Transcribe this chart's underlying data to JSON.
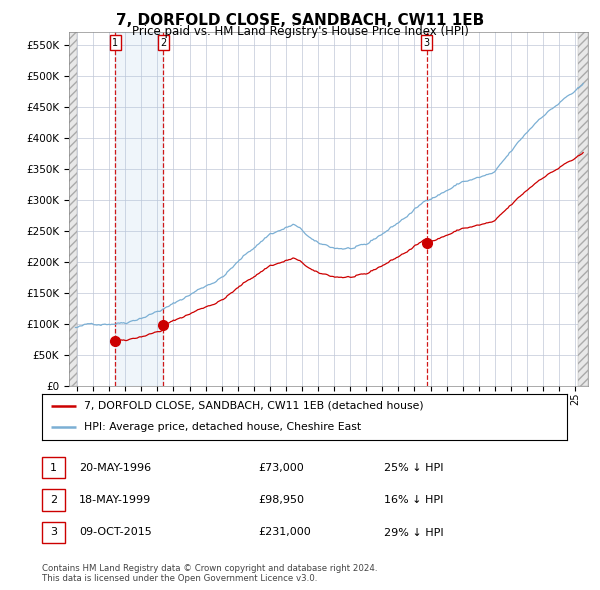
{
  "title": "7, DORFOLD CLOSE, SANDBACH, CW11 1EB",
  "subtitle": "Price paid vs. HM Land Registry's House Price Index (HPI)",
  "ylim": [
    0,
    570000
  ],
  "xlim": [
    1993.5,
    2025.8
  ],
  "yticks": [
    0,
    50000,
    100000,
    150000,
    200000,
    250000,
    300000,
    350000,
    400000,
    450000,
    500000,
    550000
  ],
  "ytick_labels": [
    "£0",
    "£50K",
    "£100K",
    "£150K",
    "£200K",
    "£250K",
    "£300K",
    "£350K",
    "£400K",
    "£450K",
    "£500K",
    "£550K"
  ],
  "sale_dates": [
    1996.38,
    1999.38,
    2015.77
  ],
  "sale_prices": [
    73000,
    98950,
    231000
  ],
  "sale_labels": [
    "1",
    "2",
    "3"
  ],
  "hpi_color": "#7bafd4",
  "sale_color": "#cc0000",
  "vline_color": "#cc0000",
  "hatch_color": "#c8d8e8",
  "background_color": "#ffffff",
  "grid_color": "#c0c8d8",
  "footnote": "Contains HM Land Registry data © Crown copyright and database right 2024.\nThis data is licensed under the Open Government Licence v3.0.",
  "legend_entries": [
    "7, DORFOLD CLOSE, SANDBACH, CW11 1EB (detached house)",
    "HPI: Average price, detached house, Cheshire East"
  ],
  "table_data": [
    [
      "1",
      "20-MAY-1996",
      "£73,000",
      "25% ↓ HPI"
    ],
    [
      "2",
      "18-MAY-1999",
      "£98,950",
      "16% ↓ HPI"
    ],
    [
      "3",
      "09-OCT-2015",
      "£231,000",
      "29% ↓ HPI"
    ]
  ]
}
